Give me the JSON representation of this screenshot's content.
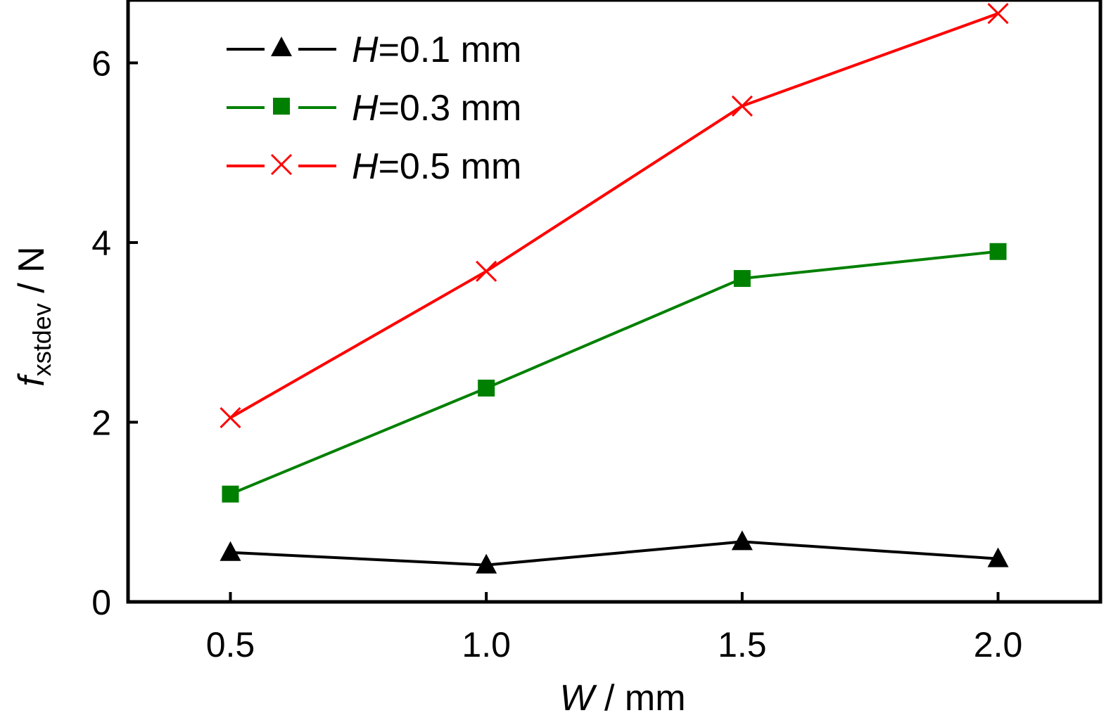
{
  "chart_data": {
    "type": "line",
    "title": "",
    "xlabel": {
      "var": "W",
      "unit": " / mm"
    },
    "ylabel": {
      "var": "f",
      "sub": "xstdev",
      "unit": " / N"
    },
    "xlim": [
      0.3,
      2.2
    ],
    "ylim": [
      0,
      6.7
    ],
    "x": [
      0.5,
      1.0,
      1.5,
      2.0
    ],
    "x_ticks": [
      {
        "value": 0.5,
        "label": "0.5"
      },
      {
        "value": 1.0,
        "label": "1.0"
      },
      {
        "value": 1.5,
        "label": "1.5"
      },
      {
        "value": 2.0,
        "label": "2.0"
      }
    ],
    "y_ticks": [
      {
        "value": 0,
        "label": "0"
      },
      {
        "value": 2,
        "label": "2"
      },
      {
        "value": 4,
        "label": "4"
      },
      {
        "value": 6,
        "label": "6"
      }
    ],
    "grid": false,
    "legend_position": "top-left",
    "series": [
      {
        "name_var": "H",
        "name_rest": "=0.1 mm",
        "color": "#000000",
        "marker": "triangle",
        "values": [
          0.55,
          0.41,
          0.67,
          0.48
        ]
      },
      {
        "name_var": "H",
        "name_rest": "=0.3 mm",
        "color": "#008000",
        "marker": "square",
        "values": [
          1.2,
          2.38,
          3.6,
          3.9
        ]
      },
      {
        "name_var": "H",
        "name_rest": "=0.5 mm",
        "color": "#ff0000",
        "marker": "cross",
        "values": [
          2.05,
          3.68,
          5.52,
          6.55
        ]
      }
    ]
  }
}
